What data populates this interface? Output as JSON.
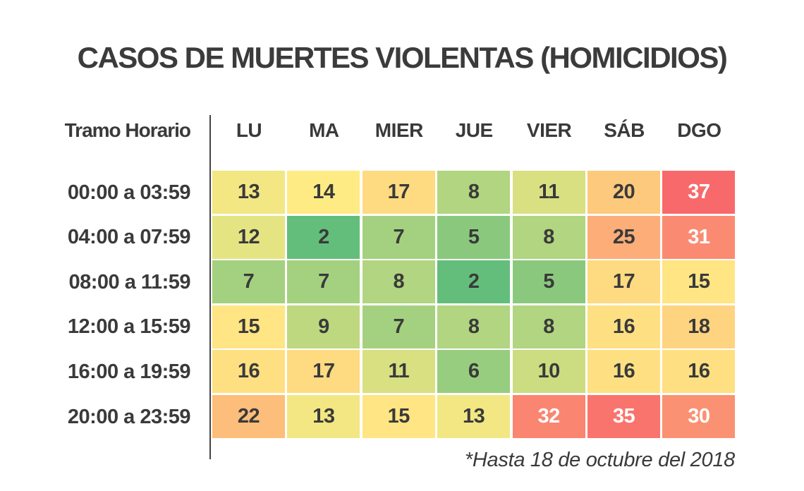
{
  "chart_data": {
    "type": "heatmap",
    "title": "CASOS DE MUERTES VIOLENTAS (HOMICIDIOS)",
    "corner_label": "Tramo Horario",
    "columns": [
      "LU",
      "MA",
      "MIER",
      "JUE",
      "VIER",
      "SÁB",
      "DGO"
    ],
    "rows": [
      "00:00 a 03:59",
      "04:00 a 07:59",
      "08:00 a 11:59",
      "12:00 a 15:59",
      "16:00 a 19:59",
      "20:00 a 23:59"
    ],
    "values": [
      [
        13,
        14,
        17,
        8,
        11,
        20,
        37
      ],
      [
        12,
        2,
        7,
        5,
        8,
        25,
        31
      ],
      [
        7,
        7,
        8,
        2,
        5,
        17,
        15
      ],
      [
        15,
        9,
        7,
        8,
        8,
        16,
        18
      ],
      [
        16,
        17,
        11,
        6,
        10,
        16,
        16
      ],
      [
        22,
        13,
        15,
        13,
        32,
        35,
        30
      ]
    ],
    "footnote": "*Hasta 18 de octubre del 2018",
    "color_scale": {
      "low": "#63be7b",
      "mid": "#ffeb84",
      "high": "#f8696b"
    },
    "text_color_dark": "#3a3a3a",
    "text_color_light": "#ffffff"
  }
}
